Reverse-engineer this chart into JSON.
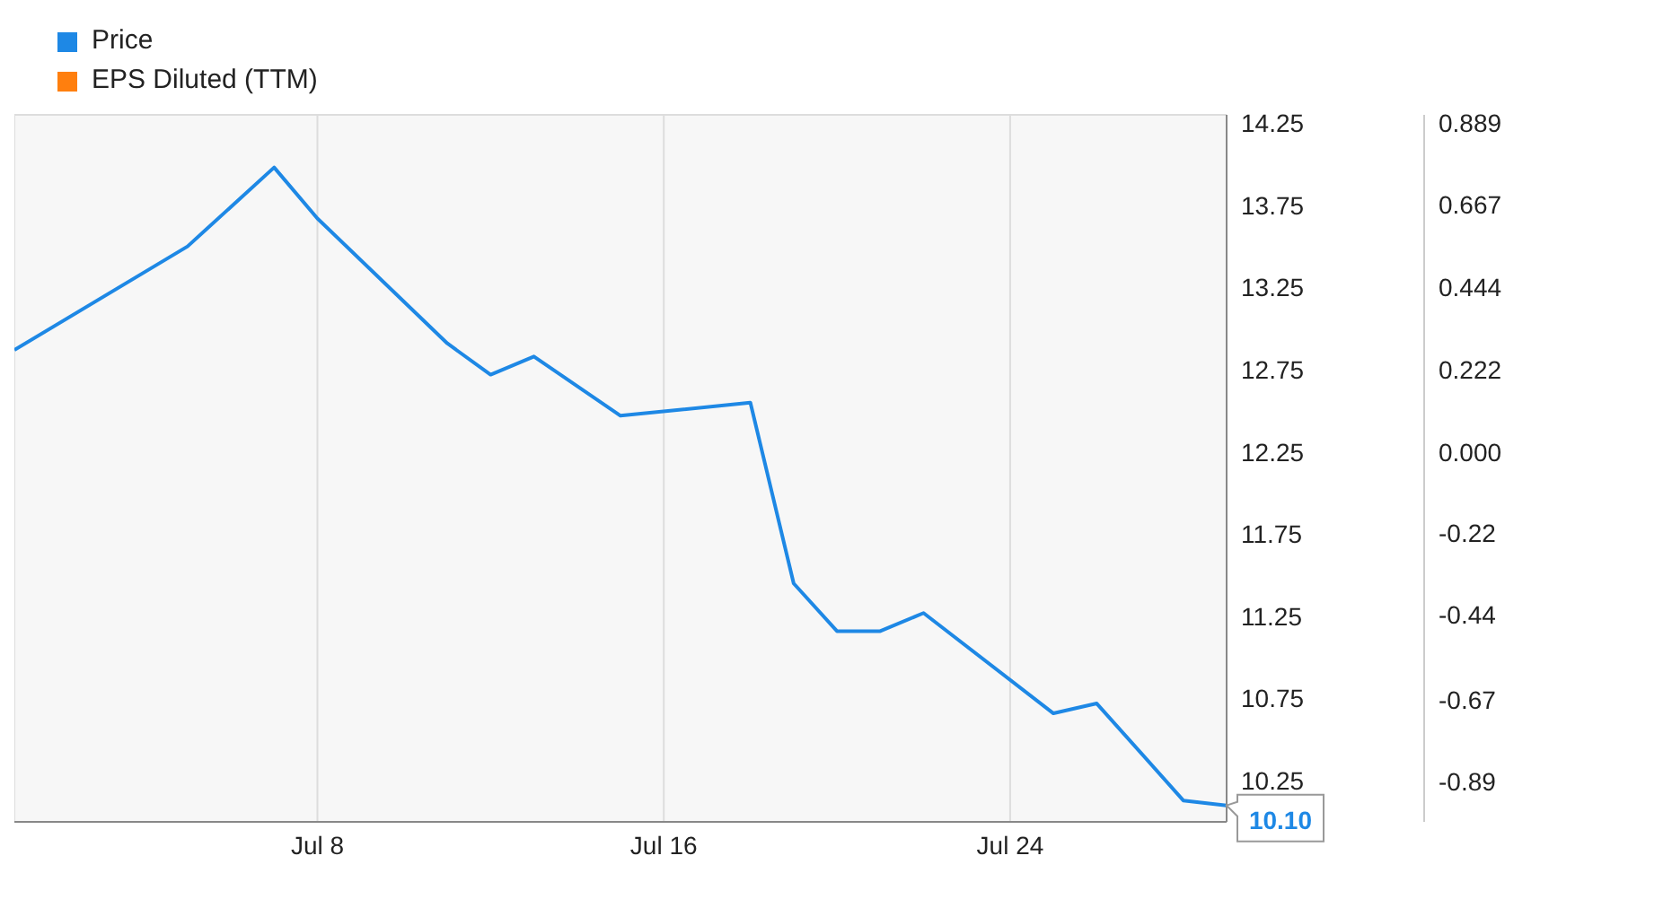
{
  "chart_data": {
    "type": "line",
    "x": [
      "--07-01",
      "--07-05",
      "--07-07",
      "--07-08",
      "--07-11",
      "--07-12",
      "--07-13",
      "--07-15",
      "--07-18",
      "--07-19",
      "--07-20",
      "--07-21",
      "--07-22",
      "--07-25",
      "--07-26",
      "--07-28",
      "--07-29"
    ],
    "series": [
      {
        "name": "Price",
        "color": "#1e88e5",
        "values": [
          12.87,
          13.5,
          13.98,
          13.67,
          12.91,
          12.72,
          12.83,
          12.47,
          12.55,
          11.45,
          11.16,
          11.16,
          11.27,
          10.66,
          10.72,
          10.13,
          10.1
        ],
        "value_labels": [
          null,
          null,
          null,
          null,
          null,
          null,
          null,
          null,
          null,
          null,
          null,
          null,
          null,
          null,
          null,
          null,
          "10.10"
        ]
      },
      {
        "name": "EPS Diluted (TTM)",
        "color": "#ff7f0e",
        "axis": "y2",
        "values": [
          null,
          null,
          null,
          null,
          null,
          null,
          null,
          null,
          null,
          null,
          null,
          null,
          null,
          null,
          null,
          null,
          null
        ]
      }
    ],
    "xlim": [
      "--07-01",
      "--07-29"
    ],
    "xticks": [
      {
        "value": "--07-08",
        "label": "Jul 8"
      },
      {
        "value": "--07-16",
        "label": "Jul 16"
      },
      {
        "value": "--07-24",
        "label": "Jul 24"
      }
    ],
    "ylim": [
      10.0,
      14.3
    ],
    "yticks": [
      10.25,
      10.75,
      11.25,
      11.75,
      12.25,
      12.75,
      13.25,
      13.75,
      14.25
    ],
    "y2lim": [
      -0.999,
      0.91
    ],
    "y2ticks": [
      {
        "value": -0.89,
        "label": "-0.89"
      },
      {
        "value": -0.67,
        "label": "-0.67"
      },
      {
        "value": -0.44,
        "label": "-0.44"
      },
      {
        "value": -0.22,
        "label": "-0.22"
      },
      {
        "value": 0,
        "label": "0.000"
      },
      {
        "value": 0.222,
        "label": "0.222"
      },
      {
        "value": 0.444,
        "label": "0.444"
      },
      {
        "value": 0.667,
        "label": "0.667"
      },
      {
        "value": 0.889,
        "label": "0.889"
      }
    ],
    "grid": true,
    "legend": "top left",
    "marker": "none",
    "line_style": "solid"
  }
}
